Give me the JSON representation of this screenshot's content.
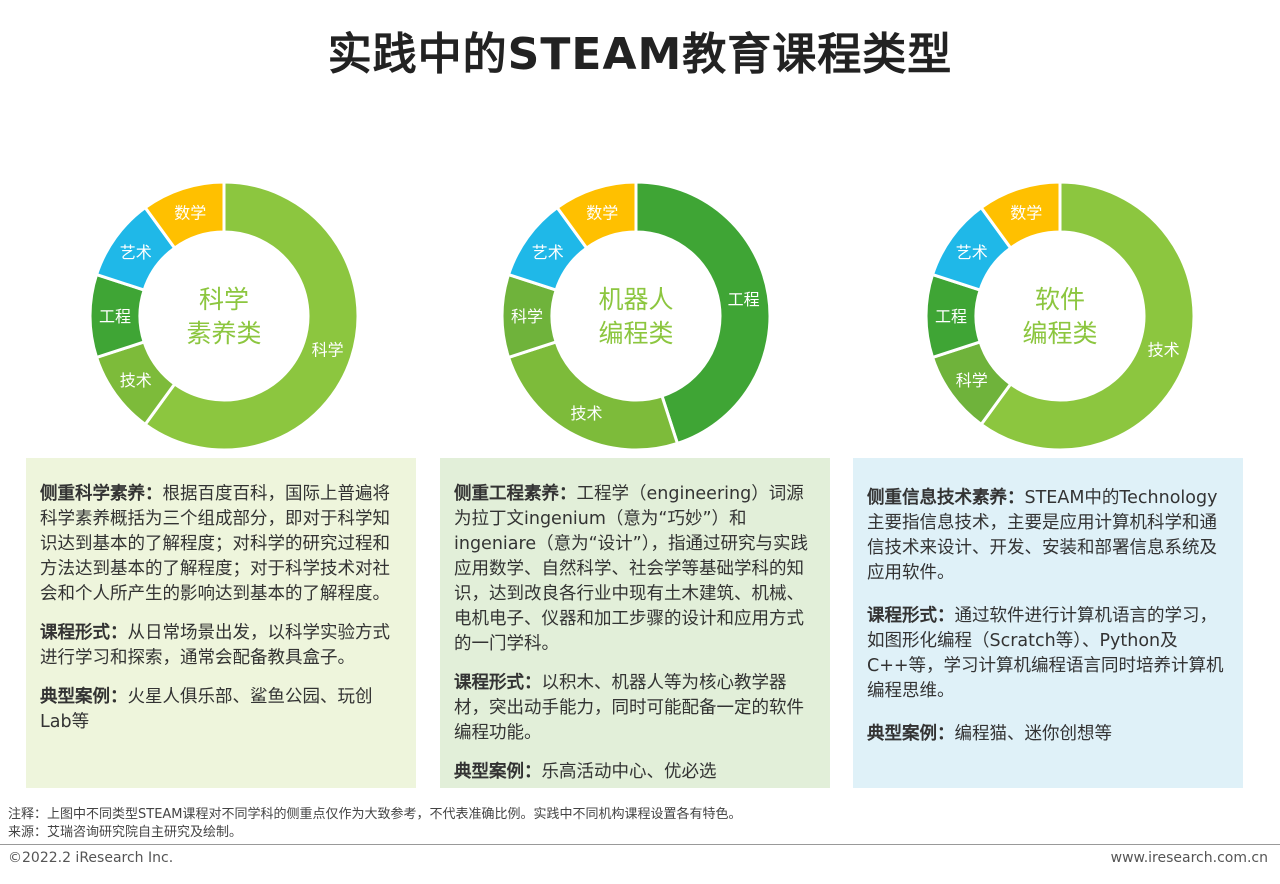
{
  "title": "实践中的STEAM教育课程类型",
  "colors": {
    "science": "#8cc63f",
    "engineering": "#3fa535",
    "tech": "#8cc63f",
    "art": "#1fb8e8",
    "math": "#ffc000",
    "panel_green": "#eef5dc",
    "panel_green2": "#e2efd9",
    "panel_blue": "#dff1f8"
  },
  "chart_data": [
    {
      "type": "pie",
      "center_label": [
        "科学",
        "素养类"
      ],
      "slices": [
        {
          "label": "科学",
          "value": 60
        },
        {
          "label": "技术",
          "value": 10
        },
        {
          "label": "工程",
          "value": 10
        },
        {
          "label": "艺术",
          "value": 10
        },
        {
          "label": "数学",
          "value": 10
        }
      ]
    },
    {
      "type": "pie",
      "center_label": [
        "机器人",
        "编程类"
      ],
      "slices": [
        {
          "label": "工程",
          "value": 45
        },
        {
          "label": "技术",
          "value": 25
        },
        {
          "label": "科学",
          "value": 10
        },
        {
          "label": "艺术",
          "value": 10
        },
        {
          "label": "数学",
          "value": 10
        }
      ]
    },
    {
      "type": "pie",
      "center_label": [
        "软件",
        "编程类"
      ],
      "slices": [
        {
          "label": "技术",
          "value": 60
        },
        {
          "label": "科学",
          "value": 10
        },
        {
          "label": "工程",
          "value": 10
        },
        {
          "label": "艺术",
          "value": 10
        },
        {
          "label": "数学",
          "value": 10
        }
      ]
    }
  ],
  "panels": [
    {
      "sections": [
        {
          "head": "侧重科学素养：",
          "body": "根据百度百科，国际上普遍将科学素养概括为三个组成部分，即对于科学知识达到基本的了解程度；对科学的研究过程和方法达到基本的了解程度；对于科学技术对社会和个人所产生的影响达到基本的了解程度。"
        },
        {
          "head": "课程形式：",
          "body": "从日常场景出发，以科学实验方式进行学习和探索，通常会配备教具盒子。"
        },
        {
          "head": "典型案例：",
          "body": "火星人俱乐部、鲨鱼公园、玩创Lab等"
        }
      ]
    },
    {
      "sections": [
        {
          "head": "侧重工程素养：",
          "body": "工程学（engineering）词源为拉丁文ingenium（意为“巧妙”）和ingeniare（意为“设计”），指通过研究与实践应用数学、自然科学、社会学等基础学科的知识，达到改良各行业中现有土木建筑、机械、电机电子、仪器和加工步骤的设计和应用方式的一门学科。"
        },
        {
          "head": "课程形式：",
          "body": "以积木、机器人等为核心教学器材，突出动手能力，同时可能配备一定的软件编程功能。"
        },
        {
          "head": "典型案例：",
          "body": "乐高活动中心、优必选"
        }
      ]
    },
    {
      "sections": [
        {
          "head": "侧重信息技术素养：",
          "body": "STEAM中的Technology主要指信息技术，主要是应用计算机科学和通信技术来设计、开发、安装和部署信息系统及应用软件。"
        },
        {
          "head": "课程形式：",
          "body": "通过软件进行计算机语言的学习，如图形化编程（Scratch等）、Python及C++等，学习计算机编程语言同时培养计算机编程思维。"
        },
        {
          "head": "典型案例：",
          "body": "编程猫、迷你创想等"
        }
      ]
    }
  ],
  "footer": {
    "note": "注释：上图中不同类型STEAM课程对不同学科的侧重点仅作为大致参考，不代表准确比例。实践中不同机构课程设置各有特色。",
    "source": "来源：艾瑞咨询研究院自主研究及绘制。",
    "copyright": "©2022.2 iResearch Inc.",
    "site": "www.iresearch.com.cn"
  }
}
